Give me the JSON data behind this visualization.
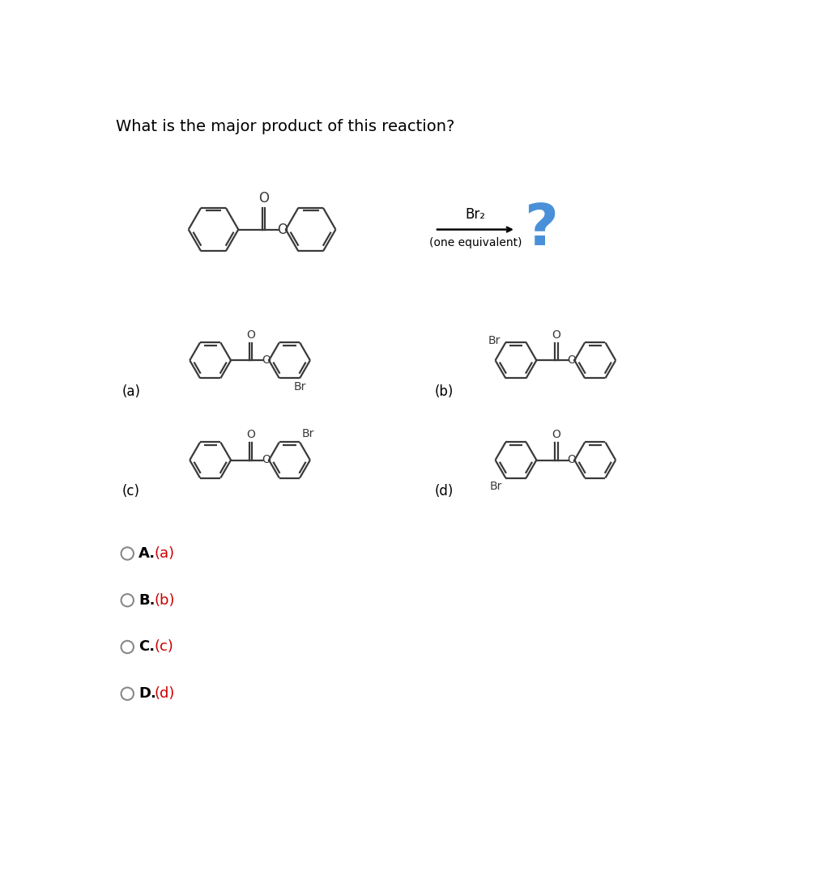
{
  "title": "What is the major product of this reaction?",
  "background_color": "#ffffff",
  "title_fontsize": 14,
  "structure_color": "#3a3a3a",
  "option_label_color": "#cc0000",
  "option_letter_color": "#000000",
  "question_mark_color": "#4a90d9",
  "arrow_color": "#000000",
  "reagent_line1": "Br₂",
  "reagent_line2": "(one equivalent)"
}
